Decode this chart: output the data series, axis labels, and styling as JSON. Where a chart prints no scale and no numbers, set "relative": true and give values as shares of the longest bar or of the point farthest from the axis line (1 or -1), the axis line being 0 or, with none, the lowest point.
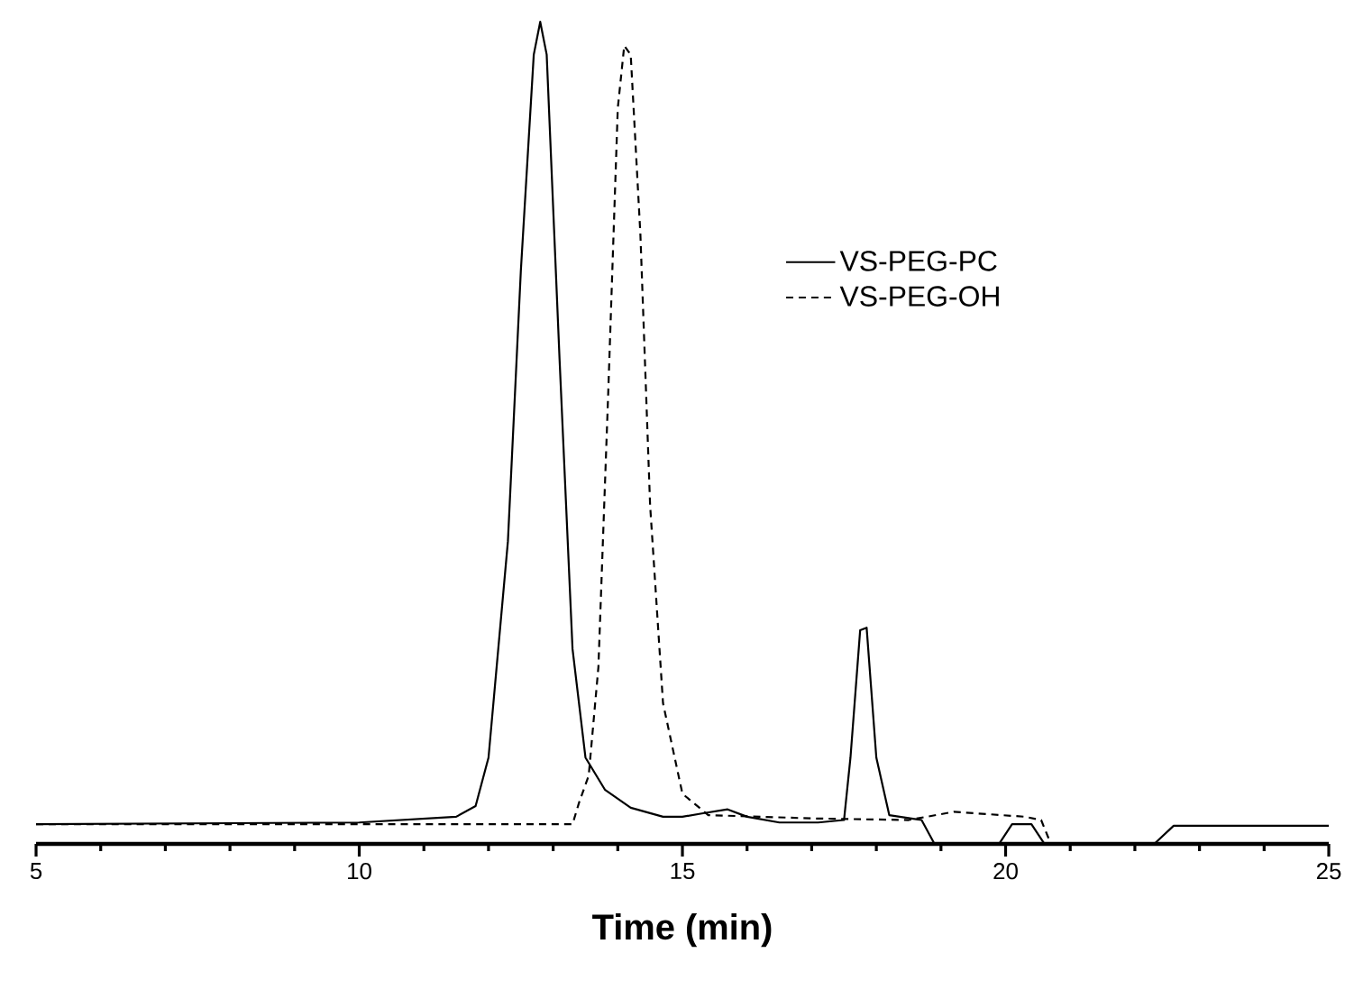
{
  "chart_data": {
    "type": "line",
    "relative": true,
    "xlabel": "Time (min)",
    "xlim": [
      5,
      25
    ],
    "xticks": [
      5,
      10,
      15,
      20,
      25
    ],
    "legend": "right",
    "grid": false,
    "marker": "none",
    "series": [
      {
        "name": "VS-PEG-PC",
        "color": "#000000",
        "line_style": "solid",
        "x": [
          5,
          10,
          11.5,
          11.8,
          12.0,
          12.3,
          12.5,
          12.7,
          12.8,
          12.9,
          13.1,
          13.3,
          13.5,
          13.8,
          14.2,
          14.7,
          15.0,
          15.3,
          15.7,
          16.0,
          16.5,
          17.1,
          17.5,
          17.6,
          17.75,
          17.85,
          18.0,
          18.2,
          18.7,
          18.9,
          19.9,
          20.1,
          20.4,
          20.6,
          22.3,
          22.6,
          25
        ],
        "values": [
          0.024,
          0.026,
          0.033,
          0.046,
          0.105,
          0.368,
          0.697,
          0.96,
          1.0,
          0.96,
          0.588,
          0.237,
          0.105,
          0.066,
          0.044,
          0.033,
          0.033,
          0.037,
          0.042,
          0.033,
          0.026,
          0.026,
          0.029,
          0.105,
          0.26,
          0.263,
          0.105,
          0.035,
          0.029,
          0,
          0,
          0.024,
          0.024,
          0,
          0,
          0.022,
          0.022
        ]
      },
      {
        "name": "VS-PEG-OH",
        "color": "#000000",
        "line_style": "dashed",
        "x": [
          5,
          10,
          13.3,
          13.4,
          13.55,
          13.7,
          13.85,
          14.0,
          14.1,
          14.2,
          14.35,
          14.5,
          14.7,
          15.0,
          15.4,
          17.0,
          18.5,
          19.2,
          20.3,
          20.55,
          20.7
        ],
        "values": [
          0.024,
          0.024,
          0.024,
          0.05,
          0.083,
          0.215,
          0.544,
          0.895,
          0.971,
          0.96,
          0.741,
          0.412,
          0.171,
          0.061,
          0.035,
          0.031,
          0.029,
          0.039,
          0.033,
          0.029,
          0
        ]
      }
    ]
  }
}
